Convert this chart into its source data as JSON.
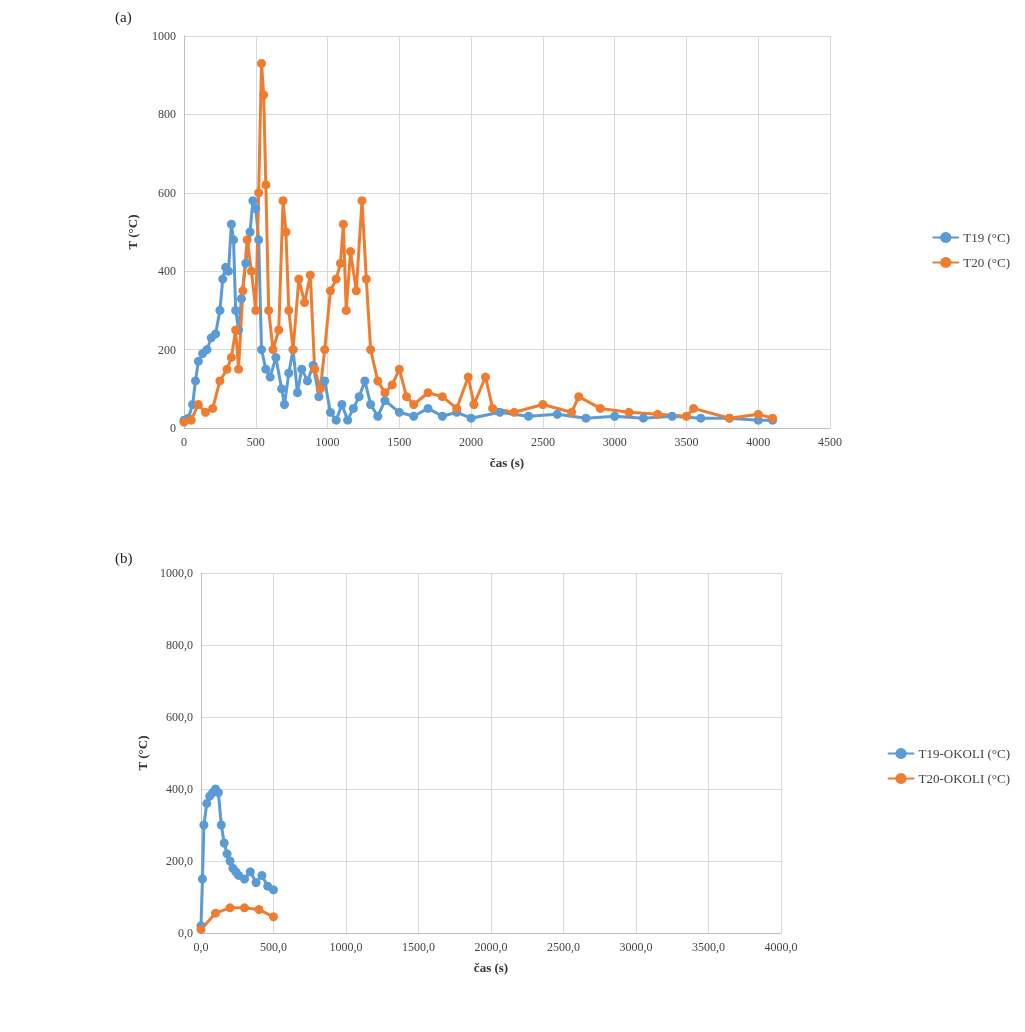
{
  "chart_data": [
    {
      "type": "line",
      "title": "(a)",
      "xlabel": "čas (s)",
      "ylabel": "T (°C)",
      "xlim": [
        0,
        4500
      ],
      "xticks": [
        0,
        500,
        1000,
        1500,
        2000,
        2500,
        3000,
        3500,
        4000,
        4500
      ],
      "ylim": [
        0,
        1000
      ],
      "yticks": [
        0,
        200,
        400,
        600,
        800,
        1000
      ],
      "grid": true,
      "legend": "right",
      "marker": "circle",
      "line_style": "solid",
      "series": [
        {
          "name": "T19 (°C)",
          "color": "#5b9bd5",
          "x": [
            0,
            30,
            60,
            80,
            100,
            130,
            160,
            190,
            220,
            250,
            270,
            290,
            310,
            330,
            345,
            360,
            380,
            400,
            430,
            460,
            480,
            500,
            520,
            540,
            570,
            600,
            640,
            680,
            700,
            730,
            760,
            790,
            820,
            860,
            900,
            940,
            980,
            1020,
            1060,
            1100,
            1140,
            1180,
            1220,
            1260,
            1300,
            1350,
            1400,
            1500,
            1600,
            1700,
            1800,
            1900,
            2000,
            2200,
            2400,
            2600,
            2800,
            3000,
            3200,
            3400,
            3600,
            3800,
            4000,
            4100
          ],
          "values": [
            20,
            25,
            60,
            120,
            170,
            190,
            200,
            230,
            240,
            300,
            380,
            410,
            400,
            520,
            480,
            300,
            250,
            330,
            420,
            500,
            580,
            560,
            480,
            200,
            150,
            130,
            180,
            100,
            60,
            140,
            200,
            90,
            150,
            120,
            160,
            80,
            120,
            40,
            20,
            60,
            20,
            50,
            80,
            120,
            60,
            30,
            70,
            40,
            30,
            50,
            30,
            40,
            25,
            40,
            30,
            35,
            25,
            30,
            25,
            30,
            25,
            25,
            20,
            20
          ]
        },
        {
          "name": "T20 (°C)",
          "color": "#ed7d31",
          "x": [
            0,
            50,
            100,
            150,
            200,
            250,
            300,
            330,
            360,
            380,
            410,
            440,
            470,
            500,
            520,
            540,
            555,
            570,
            590,
            620,
            660,
            690,
            710,
            730,
            760,
            800,
            840,
            880,
            910,
            950,
            980,
            1020,
            1060,
            1090,
            1110,
            1130,
            1160,
            1200,
            1240,
            1270,
            1300,
            1350,
            1400,
            1450,
            1500,
            1550,
            1600,
            1700,
            1800,
            1900,
            1980,
            2020,
            2100,
            2150,
            2300,
            2500,
            2700,
            2750,
            2900,
            3100,
            3300,
            3500,
            3550,
            3800,
            4000,
            4100
          ],
          "values": [
            15,
            20,
            60,
            40,
            50,
            120,
            150,
            180,
            250,
            150,
            350,
            480,
            400,
            300,
            600,
            930,
            850,
            620,
            300,
            200,
            250,
            580,
            500,
            300,
            200,
            380,
            320,
            390,
            150,
            100,
            200,
            350,
            380,
            420,
            520,
            300,
            450,
            350,
            580,
            380,
            200,
            120,
            90,
            110,
            150,
            80,
            60,
            90,
            80,
            50,
            130,
            60,
            130,
            50,
            40,
            60,
            40,
            80,
            50,
            40,
            35,
            30,
            50,
            25,
            35,
            25
          ]
        }
      ]
    },
    {
      "type": "line",
      "title": "(b)",
      "xlabel": "čas (s)",
      "ylabel": "T (°C)",
      "xlim": [
        0,
        4000
      ],
      "xticks": [
        {
          "value": 0,
          "label": "0,0"
        },
        {
          "value": 500,
          "label": "500,0"
        },
        {
          "value": 1000,
          "label": "1000,0"
        },
        {
          "value": 1500,
          "label": "1500,0"
        },
        {
          "value": 2000,
          "label": "2000,0"
        },
        {
          "value": 2500,
          "label": "2500,0"
        },
        {
          "value": 3000,
          "label": "3000,0"
        },
        {
          "value": 3500,
          "label": "3500,0"
        },
        {
          "value": 4000,
          "label": "4000,0"
        }
      ],
      "ylim": [
        0,
        1000
      ],
      "yticks": [
        {
          "value": 0,
          "label": "0,0"
        },
        {
          "value": 200,
          "label": "200,0"
        },
        {
          "value": 400,
          "label": "400,0"
        },
        {
          "value": 600,
          "label": "600,0"
        },
        {
          "value": 800,
          "label": "800,0"
        },
        {
          "value": 1000,
          "label": "1000,0"
        }
      ],
      "grid": true,
      "legend": "right",
      "marker": "circle",
      "line_style": "solid",
      "series": [
        {
          "name": "T19-OKOLI (°C)",
          "color": "#5b9bd5",
          "x": [
            0,
            10,
            20,
            40,
            60,
            80,
            100,
            120,
            140,
            160,
            180,
            200,
            220,
            240,
            260,
            300,
            340,
            380,
            420,
            460,
            500
          ],
          "values": [
            20,
            150,
            300,
            360,
            380,
            390,
            400,
            390,
            300,
            250,
            220,
            200,
            180,
            170,
            160,
            150,
            170,
            140,
            160,
            130,
            120
          ]
        },
        {
          "name": "T20-OKOLI (°C)",
          "color": "#ed7d31",
          "x": [
            0,
            100,
            200,
            300,
            400,
            500
          ],
          "values": [
            10,
            55,
            70,
            70,
            65,
            45
          ]
        }
      ]
    }
  ]
}
